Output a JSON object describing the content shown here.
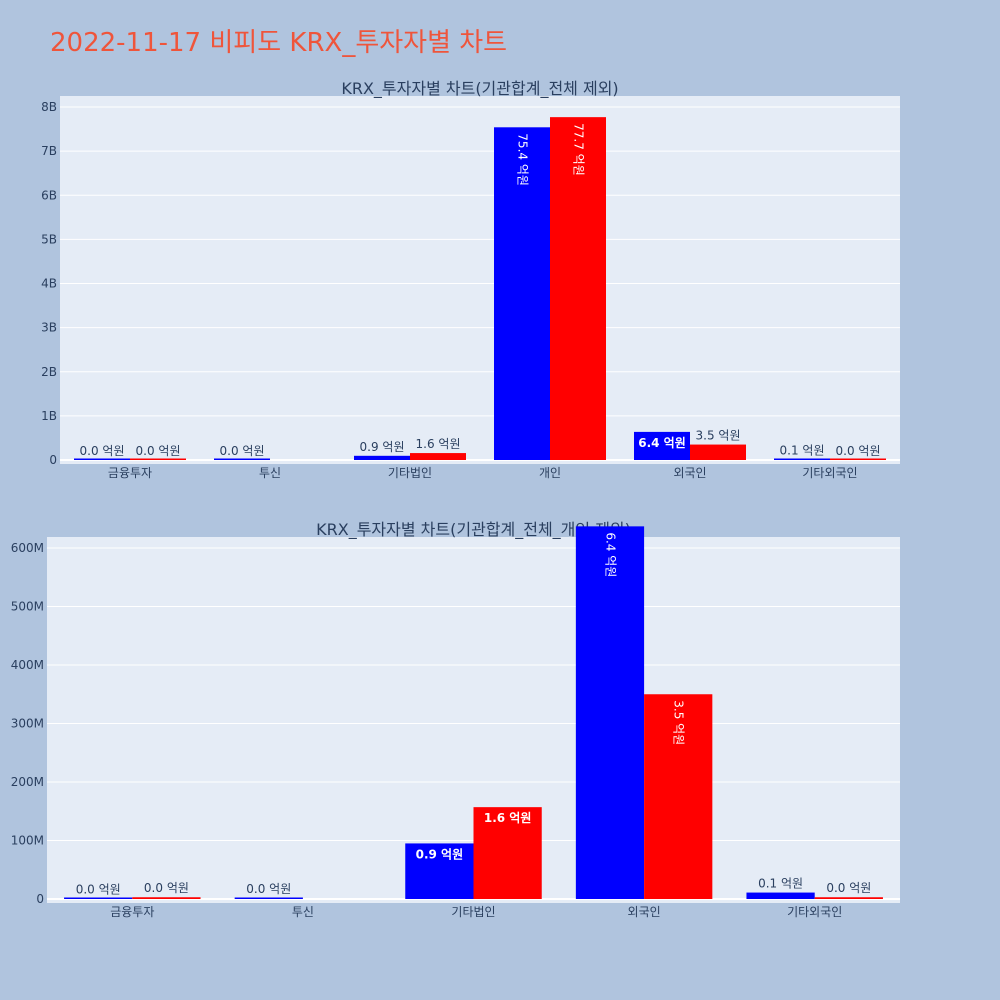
{
  "page": {
    "title": "2022-11-17 비피도 KRX_투자자별 차트"
  },
  "colors": {
    "paper": "#b0c4de",
    "plot": "#e5ecf6",
    "grid": "#ffffff",
    "title": "#ef553b",
    "text": "#2a3f5f"
  },
  "chart_data": [
    {
      "type": "bar",
      "title": "KRX_투자자별 차트(기관합계_전체 제외)",
      "categories": [
        "금융투자",
        "투신",
        "기타법인",
        "개인",
        "외국인",
        "기타외국인"
      ],
      "ylim": [
        0,
        8000000000
      ],
      "yticks": [
        0,
        1000000000,
        2000000000,
        3000000000,
        4000000000,
        5000000000,
        6000000000,
        7000000000,
        8000000000
      ],
      "ytick_labels": [
        "0",
        "1B",
        "2B",
        "3B",
        "4B",
        "5B",
        "6B",
        "7B",
        "8B"
      ],
      "grid": true,
      "series": [
        {
          "color": "#0000ff",
          "values": [
            1000000,
            2000000,
            95000000,
            7540000000,
            637000000,
            11000000
          ],
          "labels": [
            "0.0 억원",
            "0.0 억원",
            "0.9 억원",
            "75.4 억원",
            "6.4 억원",
            "0.1 억원"
          ]
        },
        {
          "color": "#ff0000",
          "values": [
            3000000,
            null,
            157000000,
            7770000000,
            350000000,
            3000000
          ],
          "labels": [
            "0.0 억원",
            "",
            "1.6 억원",
            "77.7 억원",
            "3.5 억원",
            "0.0 억원"
          ]
        }
      ]
    },
    {
      "type": "bar",
      "title": "KRX_투자자별 차트(기관합계_전체_개인 제외)",
      "categories": [
        "금융투자",
        "투신",
        "기타법인",
        "외국인",
        "기타외국인"
      ],
      "ylim": [
        0,
        680000000
      ],
      "yticks": [
        0,
        100000000,
        200000000,
        300000000,
        400000000,
        500000000,
        600000000
      ],
      "ytick_labels": [
        "0",
        "100M",
        "200M",
        "300M",
        "400M",
        "500M",
        "600M"
      ],
      "grid": true,
      "series": [
        {
          "color": "#0000ff",
          "values": [
            1000000,
            2000000,
            95000000,
            637000000,
            11000000
          ],
          "labels": [
            "0.0 억원",
            "0.0 억원",
            "0.9 억원",
            "6.4 억원",
            "0.1 억원"
          ]
        },
        {
          "color": "#ff0000",
          "values": [
            3000000,
            null,
            157000000,
            350000000,
            3000000
          ],
          "labels": [
            "0.0 억원",
            "",
            "1.6 억원",
            "3.5 억원",
            "0.0 억원"
          ]
        }
      ]
    }
  ]
}
